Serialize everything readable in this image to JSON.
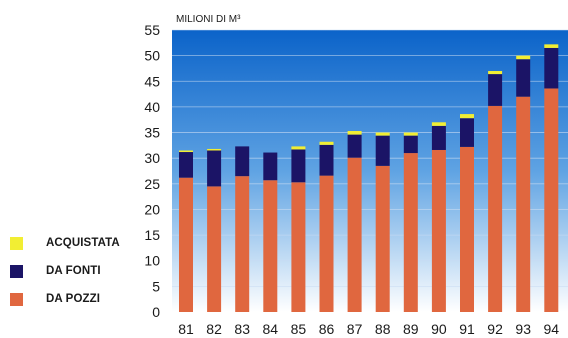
{
  "chart_data": {
    "type": "bar",
    "stacked": true,
    "unit_label": "MILIONI DI M³",
    "categories": [
      "81",
      "82",
      "83",
      "84",
      "85",
      "86",
      "87",
      "88",
      "89",
      "90",
      "91",
      "92",
      "93",
      "94"
    ],
    "series": [
      {
        "name": "DA POZZI",
        "color": "#e0673f",
        "values": [
          26.2,
          24.5,
          26.5,
          25.7,
          25.3,
          26.6,
          30.1,
          28.5,
          31.0,
          31.6,
          32.2,
          40.2,
          42.0,
          43.6
        ]
      },
      {
        "name": "DA FONTI",
        "color": "#1b1466",
        "values": [
          5.0,
          7.0,
          5.8,
          5.4,
          6.4,
          6.0,
          4.5,
          5.9,
          3.4,
          4.7,
          5.6,
          6.2,
          7.3,
          7.9
        ]
      },
      {
        "name": "ACQUISTATA",
        "color": "#f2ee33",
        "values": [
          0.3,
          0.3,
          0.0,
          0.0,
          0.6,
          0.6,
          0.7,
          0.6,
          0.6,
          0.7,
          0.8,
          0.6,
          0.7,
          0.7
        ]
      }
    ],
    "ylim": [
      0,
      55
    ],
    "yticks": [
      0,
      5,
      10,
      15,
      20,
      25,
      30,
      35,
      40,
      45,
      50,
      55
    ],
    "grid": true,
    "background_gradient": [
      "#0b63c9",
      "#ffffff"
    ],
    "legend_placement": "left"
  },
  "legend": {
    "items": [
      {
        "label": "ACQUISTATA",
        "color": "#f2ee33"
      },
      {
        "label": "DA FONTI",
        "color": "#1b1466"
      },
      {
        "label": "DA POZZI",
        "color": "#e0673f"
      }
    ]
  }
}
